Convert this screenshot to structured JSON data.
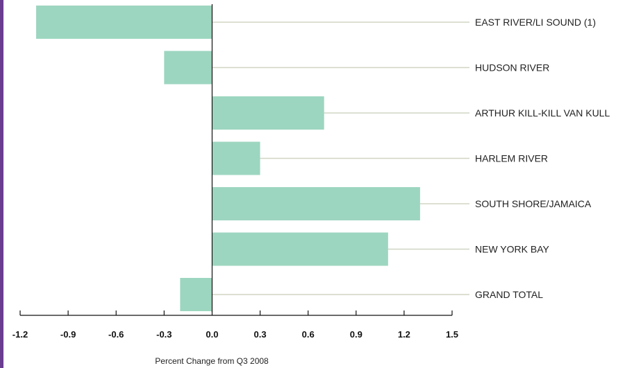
{
  "colors": {
    "bar": "#9dd6c0",
    "leader": "#cfd5c4",
    "axis": "#111111",
    "left_stripe": "#6b3d91"
  },
  "chart_data": {
    "type": "bar",
    "orientation": "horizontal",
    "categories": [
      "EAST RIVER/LI SOUND (1)",
      "HUDSON RIVER",
      "ARTHUR KILL-KILL VAN KULL",
      "HARLEM RIVER",
      "SOUTH SHORE/JAMAICA",
      "NEW YORK BAY",
      "GRAND TOTAL"
    ],
    "values": [
      -1.1,
      -0.3,
      0.7,
      0.3,
      1.3,
      1.1,
      -0.2
    ],
    "xticks": [
      "-1.2",
      "-0.9",
      "-0.6",
      "-0.3",
      "0.0",
      "0.3",
      "0.6",
      "0.9",
      "1.2",
      "1.5"
    ],
    "xlim": [
      -1.2,
      1.5
    ],
    "xlabel": "Percent Change from Q3 2008",
    "grid": false,
    "legend": "none"
  }
}
